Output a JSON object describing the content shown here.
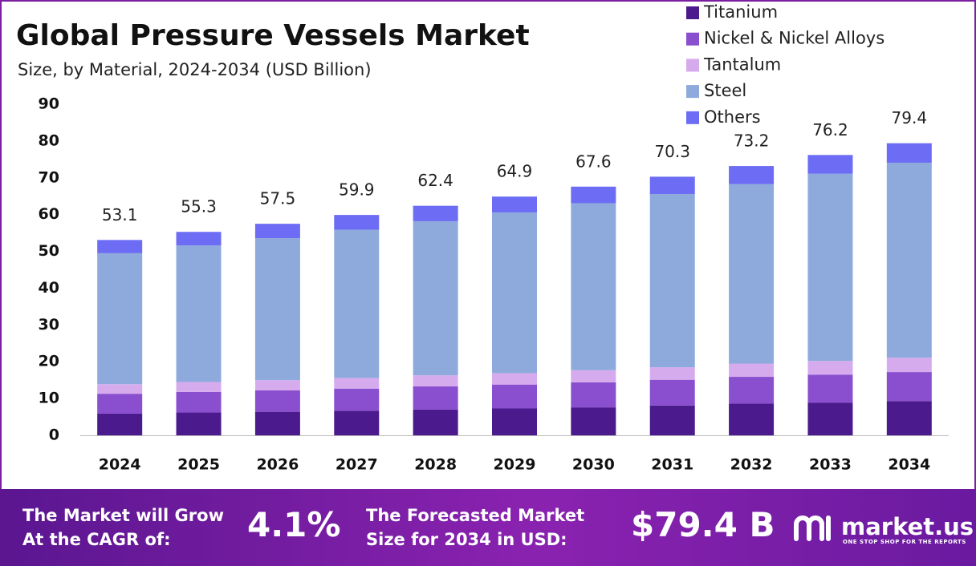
{
  "chart_data": {
    "type": "stacked-bar",
    "title": "Global Pressure Vessels Market",
    "subtitle": "Size, by Material, 2024-2034 (USD Billion)",
    "categories": [
      "2024",
      "2025",
      "2026",
      "2027",
      "2028",
      "2029",
      "2030",
      "2031",
      "2032",
      "2033",
      "2034"
    ],
    "series": [
      {
        "name": "Titanium",
        "color": "#4b1a8c",
        "values": [
          5.9,
          6.2,
          6.4,
          6.7,
          7.0,
          7.3,
          7.6,
          8.1,
          8.6,
          8.9,
          9.3
        ]
      },
      {
        "name": "Nickel & Nickel Alloys",
        "color": "#8a4fcf",
        "values": [
          5.4,
          5.6,
          5.8,
          6.0,
          6.3,
          6.5,
          6.8,
          7.0,
          7.3,
          7.6,
          7.9
        ]
      },
      {
        "name": "Tantalum",
        "color": "#d6abee",
        "values": [
          2.6,
          2.7,
          2.8,
          2.9,
          3.0,
          3.1,
          3.3,
          3.4,
          3.6,
          3.7,
          3.9
        ]
      },
      {
        "name": "Steel",
        "color": "#8eaadc",
        "values": [
          35.6,
          37.1,
          38.6,
          40.3,
          41.9,
          43.7,
          45.4,
          47.1,
          48.8,
          50.9,
          53.0
        ]
      },
      {
        "name": "Others",
        "color": "#6c6cf4",
        "values": [
          3.6,
          3.7,
          3.9,
          4.0,
          4.2,
          4.3,
          4.5,
          4.7,
          4.9,
          5.1,
          5.3
        ]
      }
    ],
    "totals": [
      53.1,
      55.3,
      57.5,
      59.9,
      62.4,
      64.9,
      67.6,
      70.3,
      73.2,
      76.2,
      79.4
    ],
    "ylim": [
      0,
      90
    ],
    "yticks": [
      0,
      10,
      20,
      30,
      40,
      50,
      60,
      70,
      80,
      90
    ],
    "legend_position": "top-right"
  },
  "footer": {
    "cagr_label": "The Market will Grow At the CAGR of:",
    "cagr": "4.1%",
    "forecast_label": "The Forecasted Market Size for 2034 in USD:",
    "forecast": "$79.4 B",
    "brand": "market.us",
    "tagline": "ONE STOP SHOP FOR THE REPORTS"
  }
}
